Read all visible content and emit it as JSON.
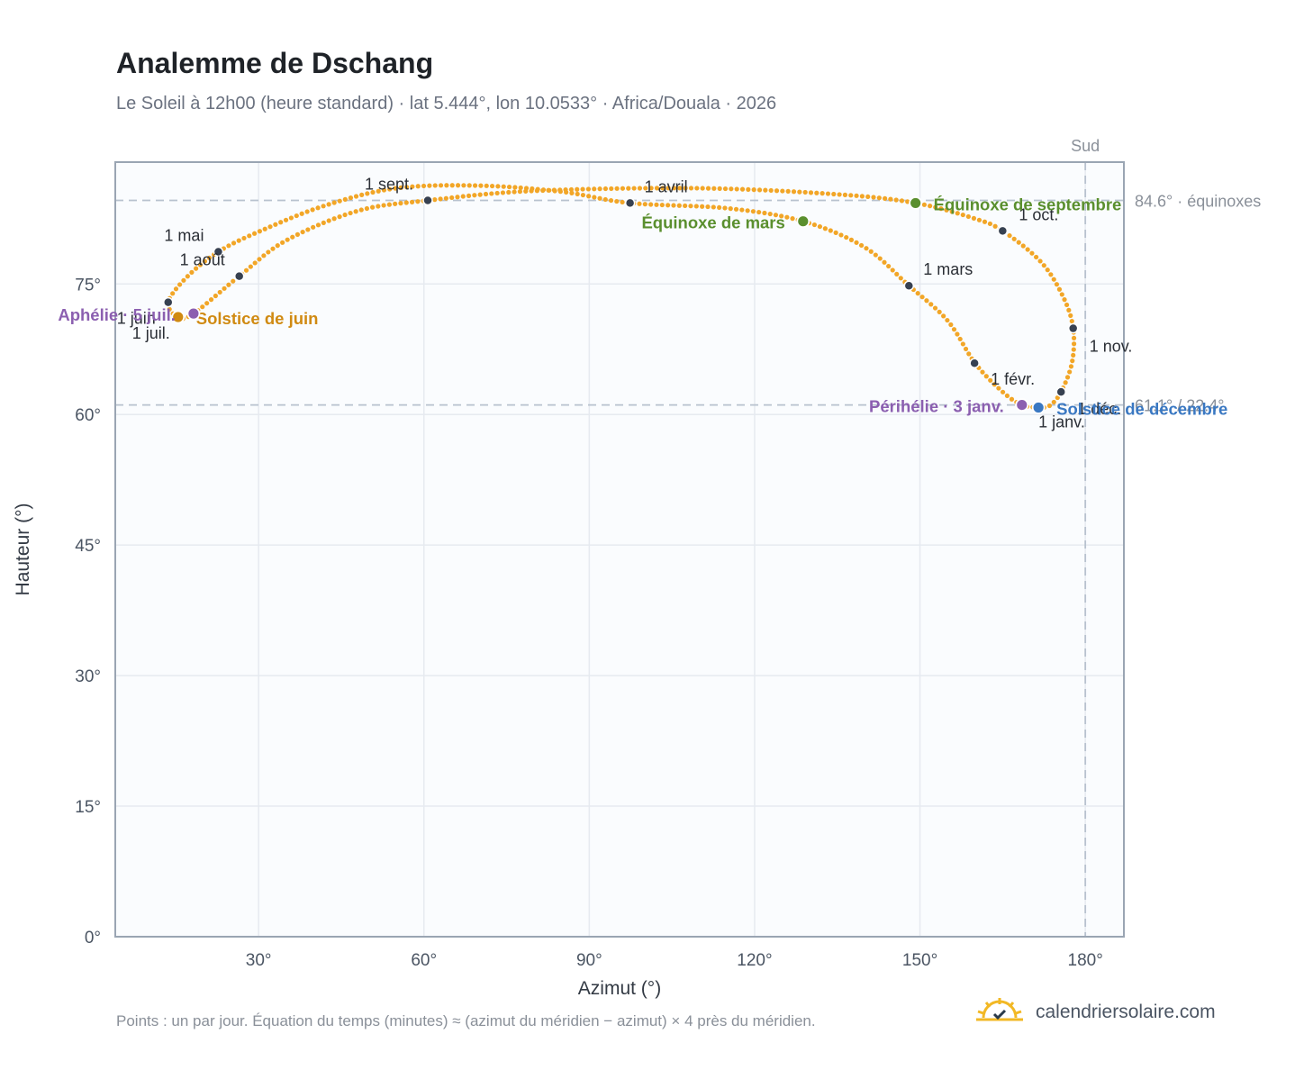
{
  "header": {
    "title": "Analemme de Dschang",
    "subtitle": "Le Soleil à 12h00 (heure standard) · lat 5.444°, lon 10.0533° · Africa/Douala · 2026"
  },
  "footer": {
    "note": "Points : un par jour. Équation du temps (minutes) ≈ (azimut du méridien − azimut) × 4 près du méridien.",
    "brand": "calendriersolaire.com",
    "brand_icon": "sun-logo-icon"
  },
  "colors": {
    "curve": "#f2a627",
    "month_marker": "#374151",
    "equinox": "#5a8f2e",
    "june_solstice": "#d08a12",
    "december_solstice": "#3a78c2",
    "apsis": "#8b5fb0",
    "reference_line": "#b8c2ce",
    "grid": "#e6eaf0",
    "plot_bg": "#fafcfe",
    "axis_frame": "#9aa5b3"
  },
  "chart_data": {
    "type": "scatter",
    "xlabel": "Azimut (°)",
    "ylabel": "Hauteur (°)",
    "xlim": [
      4,
      187
    ],
    "ylim": [
      0,
      89
    ],
    "x_ticks": [
      30,
      60,
      90,
      120,
      150,
      180
    ],
    "x_tick_labels": [
      "30°",
      "60°",
      "90°",
      "120°",
      "150°",
      "180°"
    ],
    "y_ticks": [
      0,
      15,
      30,
      45,
      60,
      75
    ],
    "y_tick_labels": [
      "0°",
      "15°",
      "30°",
      "45°",
      "60°",
      "75°"
    ],
    "grid": true,
    "reference_lines": [
      {
        "orientation": "horizontal",
        "y": 84.6,
        "label": "84.6° · équinoxes"
      },
      {
        "orientation": "horizontal",
        "y": 61.1,
        "label": "61.1° / 22.4°"
      },
      {
        "orientation": "vertical",
        "x": 180,
        "label": "Sud"
      }
    ],
    "path_nodes": [
      {
        "az": 171.5,
        "alt": 60.8
      },
      {
        "az": 168.5,
        "alt": 61.1
      },
      {
        "az": 165,
        "alt": 62.6
      },
      {
        "az": 160,
        "alt": 65.9
      },
      {
        "az": 155,
        "alt": 70.8
      },
      {
        "az": 148,
        "alt": 74.8
      },
      {
        "az": 140,
        "alt": 79.2
      },
      {
        "az": 128.8,
        "alt": 82.2
      },
      {
        "az": 115,
        "alt": 83.7
      },
      {
        "az": 97.4,
        "alt": 84.3
      },
      {
        "az": 85,
        "alt": 85.6
      },
      {
        "az": 70,
        "alt": 86.3
      },
      {
        "az": 55,
        "alt": 86.0
      },
      {
        "az": 42,
        "alt": 84.0
      },
      {
        "az": 30,
        "alt": 81.0
      },
      {
        "az": 22.7,
        "alt": 78.7
      },
      {
        "az": 17,
        "alt": 75.8
      },
      {
        "az": 13.6,
        "alt": 72.9
      },
      {
        "az": 15.4,
        "alt": 71.2
      },
      {
        "az": 18.2,
        "alt": 71.6
      },
      {
        "az": 26.5,
        "alt": 75.9
      },
      {
        "az": 35,
        "alt": 80.0
      },
      {
        "az": 48,
        "alt": 83.4
      },
      {
        "az": 60.7,
        "alt": 84.6
      },
      {
        "az": 80,
        "alt": 85.7
      },
      {
        "az": 110,
        "alt": 86.0
      },
      {
        "az": 135,
        "alt": 85.3
      },
      {
        "az": 149.2,
        "alt": 84.3
      },
      {
        "az": 160,
        "alt": 82.5
      },
      {
        "az": 165,
        "alt": 81.1
      },
      {
        "az": 172,
        "alt": 77.5
      },
      {
        "az": 176,
        "alt": 73.5
      },
      {
        "az": 177.8,
        "alt": 69.9
      },
      {
        "az": 177.6,
        "alt": 66.0
      },
      {
        "az": 175.6,
        "alt": 62.6
      },
      {
        "az": 173.5,
        "alt": 61.0
      },
      {
        "az": 171.5,
        "alt": 60.8
      }
    ],
    "month_markers": [
      {
        "label": "1 janv.",
        "az": 171.5,
        "alt": 60.8,
        "anchor": "start",
        "dx": 0,
        "dy": 22
      },
      {
        "label": "1 févr.",
        "az": 159.9,
        "alt": 65.9,
        "anchor": "start",
        "dx": 18,
        "dy": 24
      },
      {
        "label": "1 mars",
        "az": 148.0,
        "alt": 74.8,
        "anchor": "start",
        "dx": 16,
        "dy": -12
      },
      {
        "label": "1 avril",
        "az": 97.4,
        "alt": 84.3,
        "anchor": "start",
        "dx": 16,
        "dy": -12
      },
      {
        "label": "1 mai",
        "az": 22.7,
        "alt": 78.7,
        "anchor": "end",
        "dx": -16,
        "dy": -12
      },
      {
        "label": "1 juin",
        "az": 13.6,
        "alt": 72.9,
        "anchor": "end",
        "dx": -14,
        "dy": 24
      },
      {
        "label": "1 juil.",
        "az": 15.4,
        "alt": 71.2,
        "anchor": "middle",
        "dx": -30,
        "dy": 24
      },
      {
        "label": "1 août",
        "az": 26.5,
        "alt": 75.9,
        "anchor": "end",
        "dx": -16,
        "dy": -12
      },
      {
        "label": "1 sept.",
        "az": 60.7,
        "alt": 84.6,
        "anchor": "end",
        "dx": -16,
        "dy": -12
      },
      {
        "label": "1 oct.",
        "az": 165.0,
        "alt": 81.1,
        "anchor": "start",
        "dx": 18,
        "dy": -12
      },
      {
        "label": "1 nov.",
        "az": 177.8,
        "alt": 69.9,
        "anchor": "start",
        "dx": 18,
        "dy": 26
      },
      {
        "label": "1 déc.",
        "az": 175.6,
        "alt": 62.6,
        "anchor": "start",
        "dx": 18,
        "dy": 25
      }
    ],
    "events": [
      {
        "label": "Équinoxe de mars",
        "az": 128.8,
        "alt": 82.2,
        "kind": "equinox",
        "anchor": "end",
        "dx": -20,
        "dy": 8
      },
      {
        "label": "Équinoxe de septembre",
        "az": 149.2,
        "alt": 84.3,
        "kind": "equinox",
        "anchor": "start",
        "dx": 20,
        "dy": 8
      },
      {
        "label": "Solstice de juin",
        "az": 15.4,
        "alt": 71.2,
        "kind": "june_solstice",
        "anchor": "start",
        "dx": 20,
        "dy": 8
      },
      {
        "label": "Solstice de décembre",
        "az": 171.5,
        "alt": 60.8,
        "kind": "december_solstice",
        "anchor": "start",
        "dx": 20,
        "dy": 8
      },
      {
        "label": "Aphélie · 5 juil.",
        "az": 18.2,
        "alt": 71.6,
        "kind": "apsis",
        "anchor": "end",
        "dx": -20,
        "dy": 8
      },
      {
        "label": "Périhélie · 3 janv.",
        "az": 168.5,
        "alt": 61.1,
        "kind": "apsis",
        "anchor": "end",
        "dx": -20,
        "dy": 8
      }
    ]
  }
}
